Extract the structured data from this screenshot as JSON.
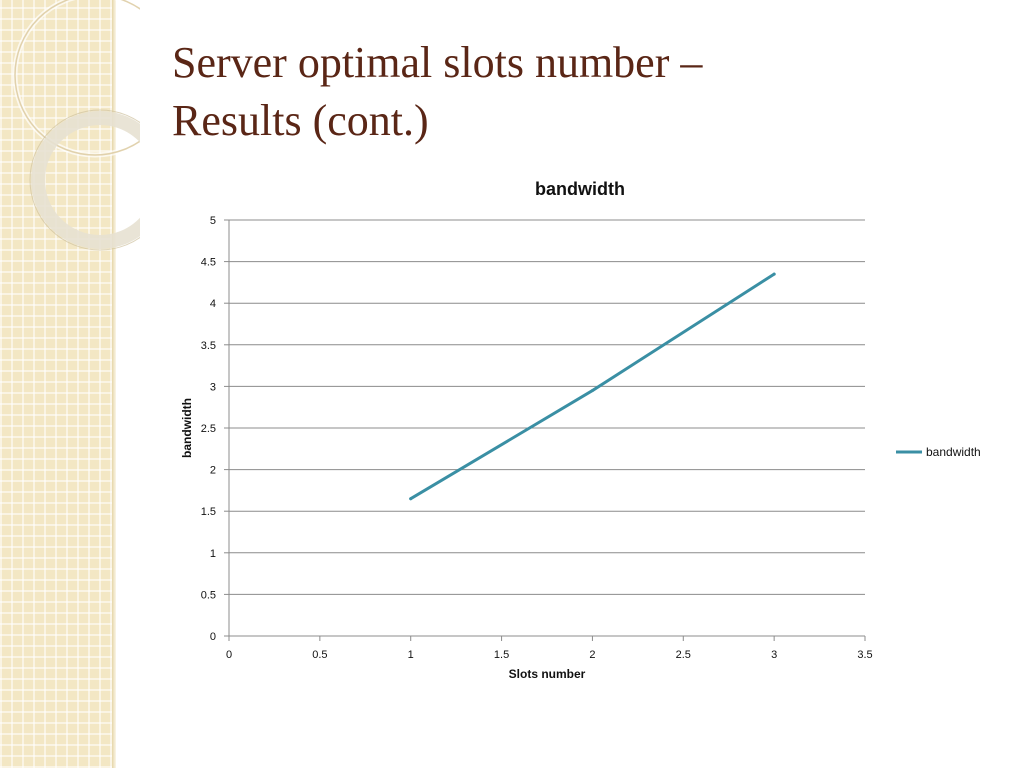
{
  "slide": {
    "title_line1": "Server optimal slots number –",
    "title_line2": "Results (cont.)"
  },
  "colors": {
    "title": "#5a2616",
    "series": "#3a8fa4",
    "grid": "#8c8c8c",
    "side_panel": "#f3e7c4"
  },
  "chart_data": {
    "type": "line",
    "title": "bandwidth",
    "xlabel": "Slots number",
    "ylabel": "bandwidth",
    "xlim": [
      0,
      3.5
    ],
    "ylim": [
      0,
      5
    ],
    "x_ticks": [
      "0",
      "0.5",
      "1",
      "1.5",
      "2",
      "2.5",
      "3",
      "3.5"
    ],
    "y_ticks": [
      "0",
      "0.5",
      "1",
      "1.5",
      "2",
      "2.5",
      "3",
      "3.5",
      "4",
      "4.5",
      "5"
    ],
    "grid": "horizontal",
    "legend_position": "right",
    "series": [
      {
        "name": "bandwidth",
        "x": [
          1,
          2,
          3
        ],
        "y": [
          1.65,
          2.95,
          4.35
        ]
      }
    ]
  }
}
